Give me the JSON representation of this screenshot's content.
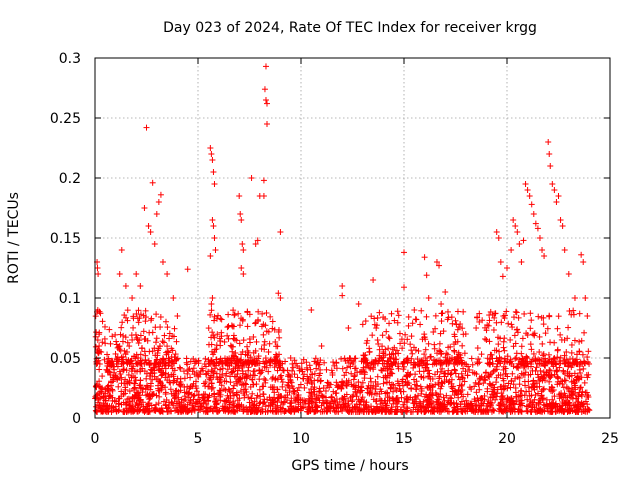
{
  "chart_data": {
    "type": "scatter",
    "title": "Day 023 of 2024, Rate Of TEC Index for receiver krgg",
    "xlabel": "GPS time / hours",
    "ylabel": "ROTI / TECUs",
    "xlim": [
      0,
      25
    ],
    "ylim": [
      0,
      0.3
    ],
    "x_ticks": [
      0,
      5,
      10,
      15,
      20,
      25
    ],
    "x_tick_labels": [
      "0",
      "5",
      "10",
      "15",
      "20",
      "25"
    ],
    "y_ticks": [
      0,
      0.05,
      0.1,
      0.15,
      0.2,
      0.25,
      0.3
    ],
    "y_tick_labels": [
      "0",
      "0.05",
      "0.1",
      "0.15",
      "0.2",
      "0.25",
      "0.3"
    ],
    "grid": true,
    "marker": "+",
    "series": [
      {
        "name": "ROTI",
        "color": "#ff0000",
        "points": [
          [
            0.1,
            0.13
          ],
          [
            0.12,
            0.125
          ],
          [
            0.15,
            0.12
          ],
          [
            0.2,
            0.06
          ],
          [
            0.3,
            0.055
          ],
          [
            1.2,
            0.12
          ],
          [
            1.3,
            0.14
          ],
          [
            1.5,
            0.11
          ],
          [
            1.8,
            0.1
          ],
          [
            2.0,
            0.12
          ],
          [
            2.2,
            0.11
          ],
          [
            2.4,
            0.175
          ],
          [
            2.5,
            0.242
          ],
          [
            2.6,
            0.16
          ],
          [
            2.7,
            0.155
          ],
          [
            2.8,
            0.196
          ],
          [
            2.9,
            0.145
          ],
          [
            3.0,
            0.17
          ],
          [
            3.1,
            0.18
          ],
          [
            3.2,
            0.186
          ],
          [
            3.3,
            0.13
          ],
          [
            3.5,
            0.12
          ],
          [
            3.8,
            0.1
          ],
          [
            4.0,
            0.085
          ],
          [
            4.5,
            0.124
          ],
          [
            5.6,
            0.225
          ],
          [
            5.65,
            0.22
          ],
          [
            5.7,
            0.215
          ],
          [
            5.75,
            0.205
          ],
          [
            5.8,
            0.195
          ],
          [
            5.7,
            0.165
          ],
          [
            5.75,
            0.16
          ],
          [
            5.8,
            0.15
          ],
          [
            5.6,
            0.135
          ],
          [
            5.85,
            0.14
          ],
          [
            5.7,
            0.1
          ],
          [
            5.65,
            0.095
          ],
          [
            7.0,
            0.185
          ],
          [
            7.05,
            0.17
          ],
          [
            7.1,
            0.165
          ],
          [
            7.15,
            0.145
          ],
          [
            7.2,
            0.14
          ],
          [
            7.1,
            0.125
          ],
          [
            7.2,
            0.12
          ],
          [
            7.6,
            0.2
          ],
          [
            7.8,
            0.145
          ],
          [
            7.9,
            0.148
          ],
          [
            8.0,
            0.185
          ],
          [
            8.2,
            0.198
          ],
          [
            8.3,
            0.293
          ],
          [
            8.25,
            0.274
          ],
          [
            8.3,
            0.265
          ],
          [
            8.35,
            0.262
          ],
          [
            8.35,
            0.245
          ],
          [
            8.2,
            0.185
          ],
          [
            9.0,
            0.155
          ],
          [
            8.9,
            0.104
          ],
          [
            9.0,
            0.1
          ],
          [
            9.5,
            0.05
          ],
          [
            10.5,
            0.09
          ],
          [
            11.0,
            0.06
          ],
          [
            12.0,
            0.11
          ],
          [
            12.0,
            0.102
          ],
          [
            12.3,
            0.075
          ],
          [
            12.8,
            0.095
          ],
          [
            13.0,
            0.078
          ],
          [
            13.5,
            0.115
          ],
          [
            14.0,
            0.055
          ],
          [
            14.5,
            0.05
          ],
          [
            15.0,
            0.109
          ],
          [
            15.0,
            0.138
          ],
          [
            15.5,
            0.09
          ],
          [
            15.6,
            0.082
          ],
          [
            16.0,
            0.134
          ],
          [
            16.1,
            0.119
          ],
          [
            16.2,
            0.1
          ],
          [
            16.6,
            0.13
          ],
          [
            16.7,
            0.127
          ],
          [
            16.8,
            0.095
          ],
          [
            17.0,
            0.105
          ],
          [
            17.5,
            0.081
          ],
          [
            18.0,
            0.07
          ],
          [
            18.5,
            0.075
          ],
          [
            19.0,
            0.065
          ],
          [
            19.5,
            0.155
          ],
          [
            19.6,
            0.15
          ],
          [
            19.7,
            0.13
          ],
          [
            19.8,
            0.118
          ],
          [
            20.0,
            0.125
          ],
          [
            20.2,
            0.14
          ],
          [
            20.3,
            0.165
          ],
          [
            20.4,
            0.16
          ],
          [
            20.5,
            0.155
          ],
          [
            20.6,
            0.145
          ],
          [
            20.7,
            0.13
          ],
          [
            20.8,
            0.148
          ],
          [
            20.9,
            0.195
          ],
          [
            21.0,
            0.19
          ],
          [
            21.1,
            0.185
          ],
          [
            21.2,
            0.178
          ],
          [
            21.3,
            0.17
          ],
          [
            21.4,
            0.162
          ],
          [
            21.5,
            0.158
          ],
          [
            21.6,
            0.15
          ],
          [
            21.7,
            0.14
          ],
          [
            21.8,
            0.135
          ],
          [
            22.0,
            0.23
          ],
          [
            22.05,
            0.22
          ],
          [
            22.1,
            0.21
          ],
          [
            22.2,
            0.195
          ],
          [
            22.3,
            0.19
          ],
          [
            22.4,
            0.18
          ],
          [
            22.5,
            0.185
          ],
          [
            22.6,
            0.165
          ],
          [
            22.7,
            0.16
          ],
          [
            22.8,
            0.14
          ],
          [
            23.0,
            0.12
          ],
          [
            23.3,
            0.1
          ],
          [
            23.6,
            0.136
          ],
          [
            23.7,
            0.13
          ],
          [
            23.8,
            0.1
          ],
          [
            23.9,
            0.085
          ]
        ],
        "background_noise": {
          "time_range": [
            0,
            24
          ],
          "typical_range": [
            0.005,
            0.05
          ],
          "note": "dense cloud of points between ~0.01 and ~0.06 TECU throughout the day"
        }
      }
    ]
  }
}
